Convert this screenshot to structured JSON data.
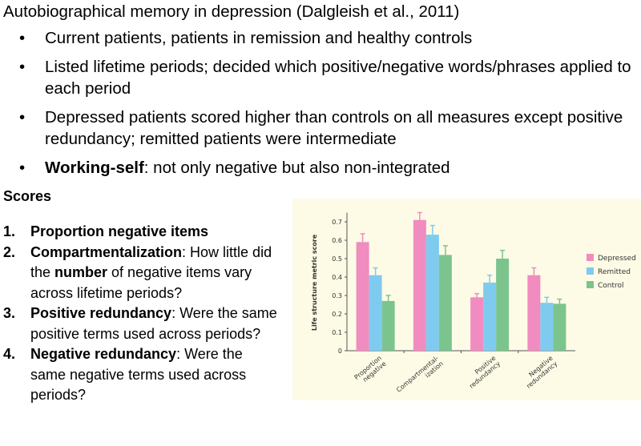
{
  "title": "Autobiographical memory in depression (Dalgleish et al., 2011)",
  "bullets": [
    {
      "text": "Current patients, patients in remission and healthy controls"
    },
    {
      "text": "Listed lifetime periods; decided which positive/negative words/phrases applied to each period"
    },
    {
      "text": "Depressed patients scored higher than controls on all measures except positive redundancy; remitted patients were intermediate"
    },
    {
      "bold": "Working-self",
      "text": ": not only negative but also non-integrated"
    }
  ],
  "scores": {
    "heading": "Scores",
    "items": [
      {
        "num": "1.",
        "bold": "Proportion negative items",
        "text": ""
      },
      {
        "num": "2.",
        "bold": "Compartmentalization",
        "text": ": How little did the ",
        "bold2": "number",
        "text2": " of negative items vary across lifetime periods?"
      },
      {
        "num": "3.",
        "bold": "Positive redundancy",
        "text": ": Were the same positive terms used across periods?"
      },
      {
        "num": "4.",
        "bold": "Negative redundancy",
        "text": ": Were the same negative terms used across periods?"
      }
    ]
  },
  "chart_data": {
    "type": "bar",
    "ylabel": "Life structure metric score",
    "xlabel": "",
    "ylim": [
      0,
      0.75
    ],
    "yticks": [
      "0",
      "0.1",
      "0.2",
      "0.3",
      "0.4",
      "0.5",
      "0.6",
      "0.7"
    ],
    "categories": [
      [
        "Proportion",
        "negative"
      ],
      [
        "Compartmental-",
        "ization"
      ],
      [
        "Positive",
        "redundancy"
      ],
      [
        "Negative",
        "redundancy"
      ]
    ],
    "series": [
      {
        "name": "Depressed",
        "color": "#f08cbf",
        "values": [
          0.59,
          0.71,
          0.29,
          0.41
        ],
        "errors": [
          0.045,
          0.04,
          0.02,
          0.04
        ]
      },
      {
        "name": "Remitted",
        "color": "#7fcbf0",
        "values": [
          0.41,
          0.63,
          0.37,
          0.26
        ],
        "errors": [
          0.04,
          0.05,
          0.04,
          0.03
        ]
      },
      {
        "name": "Control",
        "color": "#7cc48e",
        "values": [
          0.27,
          0.52,
          0.5,
          0.255
        ],
        "errors": [
          0.03,
          0.05,
          0.045,
          0.025
        ]
      }
    ],
    "legend_position": "right",
    "grid": false,
    "error_bars": true,
    "background": "#fdfbe6"
  }
}
